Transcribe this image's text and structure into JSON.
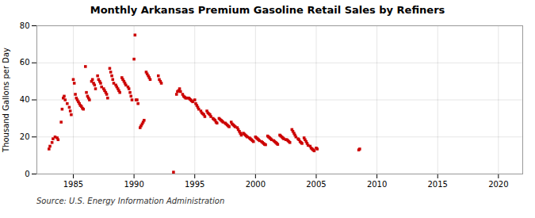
{
  "chart_data": {
    "type": "scatter",
    "title": "Monthly Arkansas Premium Gasoline Retail Sales by Refiners",
    "ylabel": "Thousand Gallons per Day",
    "annotation": "Source: U.S. Energy Information Administration",
    "color": "#cc0000",
    "marker": "square",
    "grid": true,
    "xlim": [
      1982,
      2022
    ],
    "ylim": [
      0,
      80
    ],
    "xticks": [
      1985,
      1990,
      1995,
      2000,
      2005,
      2010,
      2015,
      2020
    ],
    "yticks": [
      0,
      20,
      40,
      60,
      80
    ],
    "x": [
      1983.0,
      1983.08,
      1983.25,
      1983.33,
      1983.5,
      1983.67,
      1983.75,
      1984.0,
      1984.08,
      1984.17,
      1984.25,
      1984.33,
      1984.5,
      1984.67,
      1984.75,
      1984.83,
      1985.0,
      1985.08,
      1985.17,
      1985.25,
      1985.33,
      1985.42,
      1985.5,
      1985.58,
      1985.67,
      1985.75,
      1985.83,
      1986.0,
      1986.08,
      1986.17,
      1986.25,
      1986.33,
      1986.5,
      1986.58,
      1986.67,
      1986.75,
      1986.83,
      1987.0,
      1987.08,
      1987.17,
      1987.25,
      1987.33,
      1987.5,
      1987.58,
      1987.67,
      1987.75,
      1987.83,
      1988.0,
      1988.08,
      1988.17,
      1988.25,
      1988.33,
      1988.5,
      1988.58,
      1988.67,
      1988.75,
      1988.83,
      1989.0,
      1989.08,
      1989.17,
      1989.25,
      1989.33,
      1989.5,
      1989.58,
      1989.67,
      1989.75,
      1989.83,
      1990.0,
      1990.08,
      1990.17,
      1990.25,
      1990.33,
      1990.5,
      1990.58,
      1990.67,
      1990.75,
      1990.83,
      1991.0,
      1991.08,
      1991.17,
      1991.25,
      1991.33,
      1992.0,
      1992.08,
      1992.17,
      1992.25,
      1993.25,
      1993.5,
      1993.58,
      1993.67,
      1993.75,
      1993.83,
      1994.0,
      1994.08,
      1994.17,
      1994.25,
      1994.33,
      1994.5,
      1994.58,
      1994.67,
      1994.75,
      1994.83,
      1995.0,
      1995.08,
      1995.17,
      1995.25,
      1995.33,
      1995.5,
      1995.58,
      1995.67,
      1995.75,
      1995.83,
      1996.0,
      1996.08,
      1996.17,
      1996.25,
      1996.33,
      1996.5,
      1996.58,
      1996.67,
      1996.75,
      1996.83,
      1997.0,
      1997.08,
      1997.17,
      1997.25,
      1997.33,
      1997.5,
      1997.58,
      1997.67,
      1997.75,
      1997.83,
      1998.0,
      1998.08,
      1998.17,
      1998.25,
      1998.33,
      1998.5,
      1998.58,
      1998.67,
      1998.75,
      1998.83,
      1999.0,
      1999.08,
      1999.17,
      1999.25,
      1999.33,
      1999.5,
      1999.58,
      1999.67,
      1999.75,
      1999.83,
      2000.0,
      2000.08,
      2000.17,
      2000.25,
      2000.33,
      2000.5,
      2000.58,
      2000.67,
      2000.75,
      2000.83,
      2001.0,
      2001.08,
      2001.17,
      2001.25,
      2001.33,
      2001.5,
      2001.58,
      2001.67,
      2001.75,
      2001.83,
      2002.0,
      2002.08,
      2002.17,
      2002.25,
      2002.33,
      2002.5,
      2002.58,
      2002.67,
      2002.75,
      2002.83,
      2003.0,
      2003.08,
      2003.17,
      2003.25,
      2003.33,
      2003.5,
      2003.58,
      2003.67,
      2003.75,
      2003.83,
      2004.0,
      2004.08,
      2004.17,
      2004.25,
      2004.33,
      2004.5,
      2004.58,
      2004.67,
      2004.75,
      2004.83,
      2005.0,
      2005.08,
      2008.5,
      2008.58
    ],
    "values": [
      13.5,
      15.0,
      17.0,
      19.0,
      20.0,
      19.5,
      18.5,
      28.0,
      35.0,
      41.0,
      42.0,
      40.0,
      38.0,
      36.0,
      34.0,
      32.0,
      51.0,
      49.0,
      43.0,
      41.0,
      40.0,
      39.0,
      38.0,
      37.0,
      36.5,
      35.5,
      35.0,
      58.0,
      44.0,
      42.0,
      41.0,
      40.0,
      50.0,
      51.0,
      49.0,
      48.0,
      46.0,
      53.0,
      51.0,
      50.0,
      49.0,
      47.0,
      46.0,
      45.0,
      44.0,
      43.0,
      41.0,
      57.0,
      55.0,
      53.0,
      51.0,
      49.0,
      48.0,
      47.0,
      46.0,
      45.0,
      44.0,
      52.0,
      51.0,
      50.0,
      49.0,
      48.0,
      47.0,
      46.0,
      44.0,
      42.0,
      40.0,
      62.0,
      75.0,
      40.0,
      40.0,
      38.0,
      25.0,
      26.0,
      27.0,
      28.0,
      29.0,
      55.0,
      54.0,
      53.0,
      52.0,
      51.0,
      53.0,
      51.0,
      50.0,
      49.0,
      1.0,
      43.0,
      44.5,
      45.0,
      46.0,
      44.5,
      43.0,
      42.0,
      41.5,
      41.0,
      41.0,
      41.0,
      40.5,
      40.0,
      39.5,
      39.0,
      40.0,
      38.0,
      37.0,
      36.0,
      35.0,
      34.0,
      33.0,
      32.5,
      32.0,
      31.0,
      34.0,
      33.0,
      32.5,
      32.0,
      31.0,
      30.0,
      29.5,
      29.0,
      28.0,
      27.5,
      30.0,
      29.5,
      29.0,
      28.5,
      28.0,
      27.5,
      27.0,
      26.5,
      26.0,
      25.5,
      28.0,
      27.0,
      26.5,
      26.0,
      25.5,
      25.0,
      24.0,
      23.0,
      22.0,
      21.0,
      22.0,
      21.5,
      21.0,
      20.5,
      20.0,
      19.5,
      19.0,
      18.5,
      18.0,
      17.5,
      20.0,
      19.5,
      19.0,
      18.5,
      18.0,
      17.5,
      17.0,
      16.5,
      16.0,
      15.8,
      20.5,
      20.0,
      19.5,
      19.0,
      18.5,
      18.0,
      17.5,
      17.0,
      16.5,
      16.0,
      21.0,
      20.5,
      20.0,
      19.5,
      19.0,
      18.5,
      18.5,
      18.0,
      17.5,
      17.0,
      24.0,
      23.0,
      22.0,
      21.0,
      20.0,
      19.0,
      18.5,
      17.5,
      17.0,
      16.5,
      19.5,
      18.5,
      17.5,
      16.5,
      15.5,
      15.0,
      14.0,
      13.5,
      13.0,
      12.5,
      14.0,
      13.5,
      13.0,
      13.5
    ]
  }
}
